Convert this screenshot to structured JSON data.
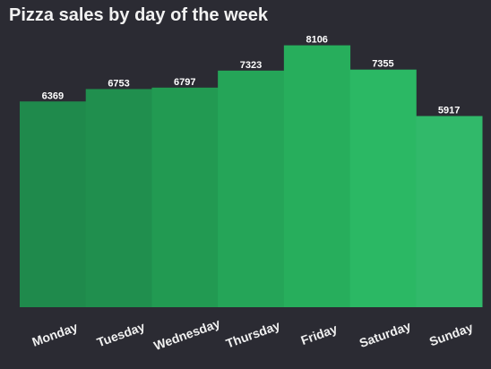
{
  "chart_data": {
    "type": "bar",
    "title": "Pizza sales by day of the week",
    "xlabel": "",
    "ylabel": "",
    "categories": [
      "Monday",
      "Tuesday",
      "Wednesday",
      "Thursday",
      "Friday",
      "Saturday",
      "Sunday"
    ],
    "values": [
      6369,
      6753,
      6797,
      7323,
      8106,
      7355,
      5917
    ],
    "ylim": [
      0,
      8400
    ],
    "grid": false,
    "legend": "none",
    "colors": [
      "#1f8a4c",
      "#208f4e",
      "#229a52",
      "#25a558",
      "#27ae5c",
      "#2bb864",
      "#31b96a"
    ],
    "background": "#2b2b33"
  }
}
